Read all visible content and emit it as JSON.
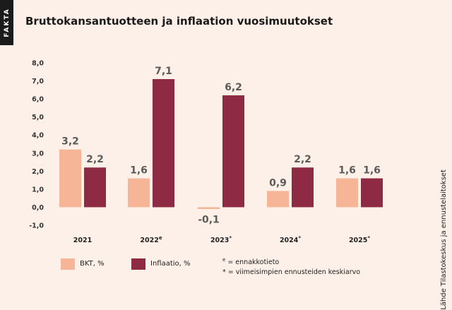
{
  "header": {
    "tab_label": "FAKTA",
    "title": "Bruttokansantuotteen ja inflaation vuosimuutokset"
  },
  "source": "Lähde Tilastokeskus ja ennustelaitokset",
  "colors": {
    "bkt": "#f5b596",
    "inflaatio": "#8f2a44",
    "background": "#fdf0e8"
  },
  "chart_data": {
    "type": "bar",
    "categories": [
      "2021",
      "2022",
      "2023",
      "2024",
      "2025"
    ],
    "category_marks": [
      "",
      "e",
      "*",
      "*",
      "*"
    ],
    "series": [
      {
        "name": "BKT, %",
        "values": [
          3.2,
          1.6,
          -0.1,
          0.9,
          1.6
        ],
        "labels": [
          "3,2",
          "1,6",
          "-0,1",
          "0,9",
          "1,6"
        ]
      },
      {
        "name": "Inflaatio, %",
        "values": [
          2.2,
          7.1,
          6.2,
          2.2,
          1.6
        ],
        "labels": [
          "2,2",
          "7,1",
          "6,2",
          "2,2",
          "1,6"
        ]
      }
    ],
    "ylim": [
      -1.0,
      8.0
    ],
    "yticks": [
      -1.0,
      0.0,
      1.0,
      2.0,
      3.0,
      4.0,
      5.0,
      6.0,
      7.0,
      8.0
    ],
    "ytick_labels": [
      "-1,0",
      "0,0",
      "1,0",
      "2,0",
      "3,0",
      "4,0",
      "5,0",
      "6,0",
      "7,0",
      "8,0"
    ],
    "grid": false,
    "legend": "bottom-left"
  },
  "notes": [
    {
      "mark": "e",
      "text": " = ennakkotieto"
    },
    {
      "mark": "*",
      "text": " = viimeisimpien ennusteiden keskiarvo"
    }
  ]
}
